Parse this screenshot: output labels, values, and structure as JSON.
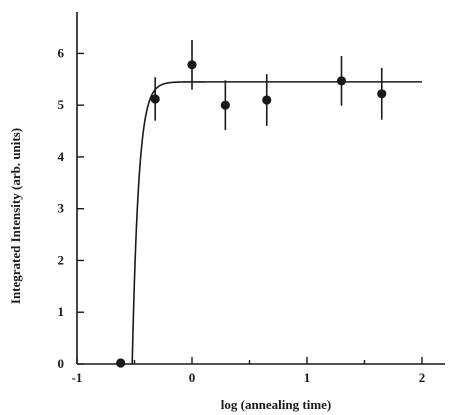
{
  "chart_data": {
    "type": "scatter",
    "title": "",
    "xlabel": "log (annealing time)",
    "ylabel": "Integrated Intensity  (arb. units)",
    "xlim": [
      -1,
      2.2
    ],
    "ylim": [
      0,
      6.8
    ],
    "x_ticks": [
      "-1",
      "0",
      "1",
      "2"
    ],
    "y_ticks": [
      "0",
      "1",
      "2",
      "3",
      "4",
      "5",
      "6"
    ],
    "grid": false,
    "legend": "none",
    "series": [
      {
        "points": [
          {
            "x": -0.62,
            "y": 0.02,
            "err": 0.0
          },
          {
            "x": -0.32,
            "y": 5.12,
            "err": 0.42
          },
          {
            "x": 0.0,
            "y": 5.78,
            "err": 0.48
          },
          {
            "x": 0.29,
            "y": 5.0,
            "err": 0.48
          },
          {
            "x": 0.65,
            "y": 5.1,
            "err": 0.5
          },
          {
            "x": 1.3,
            "y": 5.47,
            "err": 0.48
          },
          {
            "x": 1.65,
            "y": 5.22,
            "err": 0.5
          }
        ]
      }
    ],
    "fit_curve": {
      "x0": -0.52,
      "asymptote": 5.45,
      "rate": 18,
      "x_end": 2.0
    }
  }
}
